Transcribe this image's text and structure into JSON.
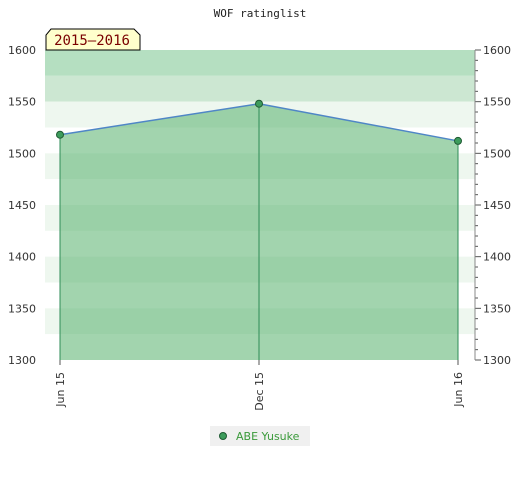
{
  "chart_data": {
    "type": "area",
    "title": "WOF ratinglist",
    "period_label": "2015–2016",
    "x": [
      "Jun 15",
      "Dec 15",
      "Jun 16"
    ],
    "x_month_index": [
      0,
      6,
      12
    ],
    "series": [
      {
        "name": "ABE Yusuke",
        "values": [
          1518,
          1548,
          1512
        ]
      }
    ],
    "ylim": [
      1300,
      1600
    ],
    "y_ticks": [
      1300,
      1350,
      1400,
      1450,
      1500,
      1550,
      1600
    ],
    "xlabel": "",
    "ylabel": "",
    "legend_placement": "bottom-center",
    "grid": true,
    "colors": {
      "line": "#4f86c6",
      "marker_fill": "#3d9c5c",
      "marker_stroke": "#1e5a32",
      "area_fill": "#56b06b",
      "drop_line": "#2e8b57",
      "band_light": "#eef7ef",
      "band_mid": "#cce7d2",
      "band_dark": "#b5dfc1",
      "period_bg": "#ffffcc",
      "legend_text": "#3a9a3a",
      "legend_bg": "#f0f0f0"
    }
  }
}
